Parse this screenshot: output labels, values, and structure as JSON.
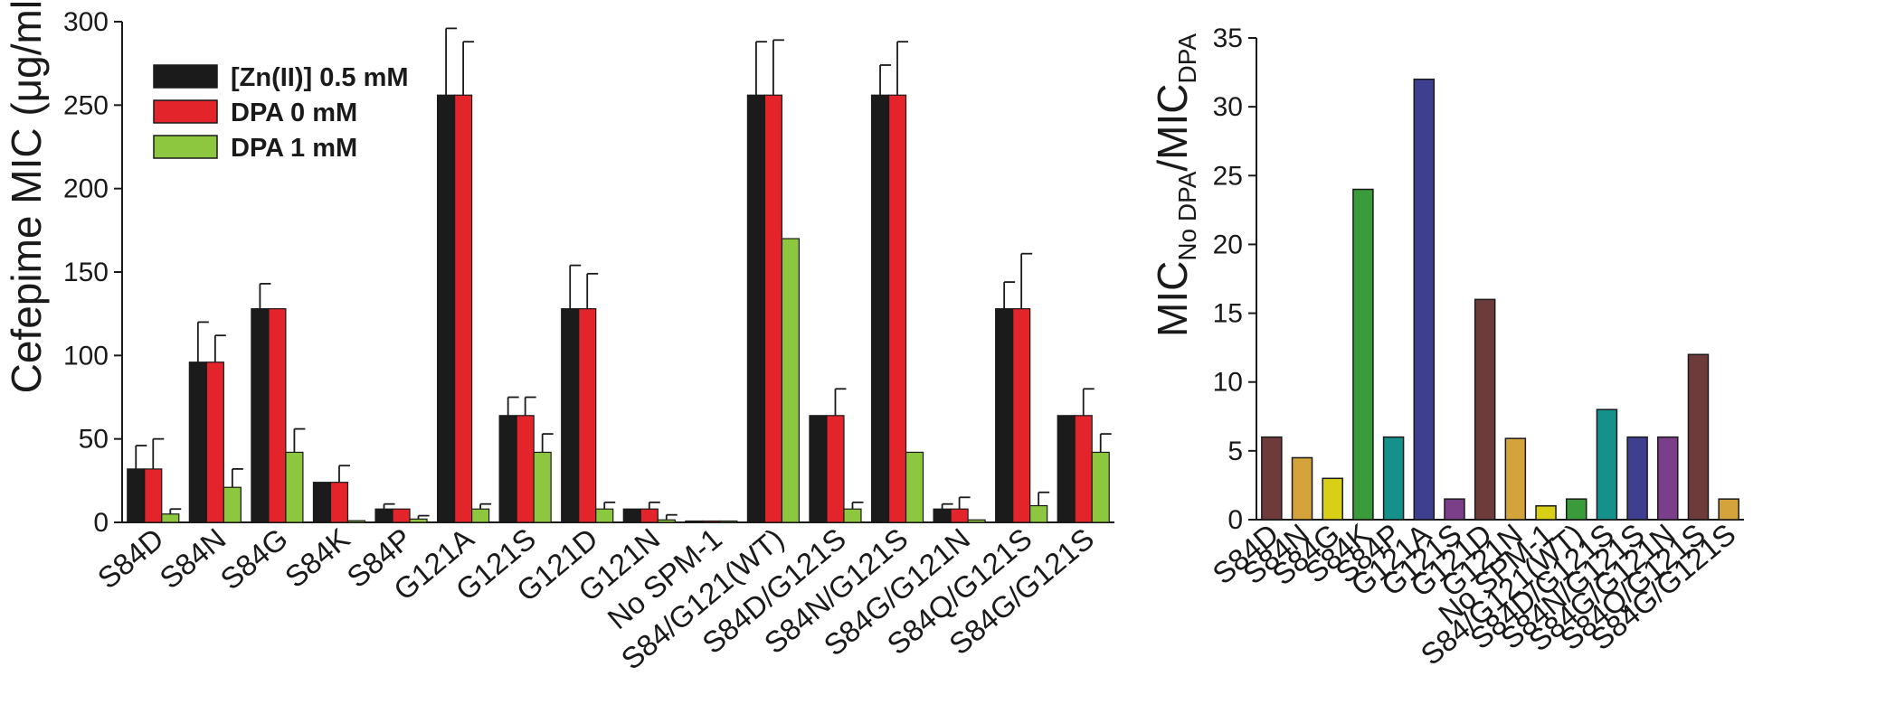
{
  "colors": {
    "zinc": "#1b1b1b",
    "dpa0": "#e3242b",
    "dpa1": "#8dc63f",
    "bar_palette": [
      "#6e3b3b",
      "#d4a33c",
      "#d8cf16",
      "#3a9b3a",
      "#14918a",
      "#3f3f8f",
      "#7b3f8a",
      "#6e3b3b",
      "#d4a33c",
      "#d8cf16",
      "#3a9b3a",
      "#14918a",
      "#3f3f8f",
      "#7b3f8a",
      "#6e3b3b",
      "#d4a33c"
    ]
  },
  "chart_data": [
    {
      "type": "bar",
      "ylabel": "Cefepime MIC (μg/ml)",
      "ylim": [
        0,
        300
      ],
      "yticks": [
        0,
        50,
        100,
        150,
        200,
        250,
        300
      ],
      "legend_position": "top-left",
      "categories": [
        "S84D",
        "S84N",
        "S84G",
        "S84K",
        "S84P",
        "G121A",
        "G121S",
        "G121D",
        "G121N",
        "No SPM-1",
        "S84/G121(WT)",
        "S84D/G121S",
        "S84N/G121S",
        "S84G/G121N",
        "S84Q/G121S",
        "S84G/G121S"
      ],
      "series": [
        {
          "name": "[Zn(II)] 0.5 mM",
          "values": [
            32,
            96,
            128,
            24,
            8,
            256,
            64,
            128,
            8,
            0.5,
            256,
            64,
            256,
            8,
            128,
            64
          ],
          "errors": [
            14,
            24,
            15,
            0,
            3,
            40,
            11,
            26,
            0,
            0,
            32,
            0,
            18,
            3,
            16,
            0
          ]
        },
        {
          "name": "DPA 0 mM",
          "values": [
            32,
            96,
            128,
            24,
            8,
            256,
            64,
            128,
            8,
            0.5,
            256,
            64,
            256,
            8,
            128,
            64
          ],
          "errors": [
            18,
            16,
            0,
            10,
            0,
            32,
            11,
            21,
            4,
            0,
            33,
            16,
            32,
            7,
            33,
            16
          ]
        },
        {
          "name": "DPA 1 mM",
          "values": [
            5,
            21,
            42,
            1,
            2,
            8,
            42,
            8,
            1.5,
            0.5,
            170,
            8,
            42,
            1.5,
            10,
            42
          ],
          "errors": [
            3,
            11,
            14,
            0,
            2,
            3,
            11,
            4,
            3,
            0,
            0,
            4,
            0,
            0,
            8,
            11
          ]
        }
      ]
    },
    {
      "type": "bar",
      "ylabel_main": "MIC",
      "ylabel_sub1": "No DPA",
      "ylabel_mid": "/MIC",
      "ylabel_sub2": "DPA",
      "ylim": [
        0,
        35
      ],
      "yticks": [
        0,
        5,
        10,
        15,
        20,
        25,
        30,
        35
      ],
      "categories": [
        "S84D",
        "S84N",
        "S84G",
        "S84K",
        "S84P",
        "G121A",
        "G121S",
        "G121D",
        "G121N",
        "No SPM-1",
        "S84/G121(WT)",
        "S84D/G121S",
        "S84N/G121S",
        "S84G/G121N",
        "S84Q/G121S",
        "S84G/G121S"
      ],
      "values": [
        6,
        4.5,
        3,
        24,
        6,
        32,
        1.5,
        16,
        5.9,
        1,
        1.5,
        8,
        6,
        6,
        12,
        1.5
      ]
    }
  ]
}
